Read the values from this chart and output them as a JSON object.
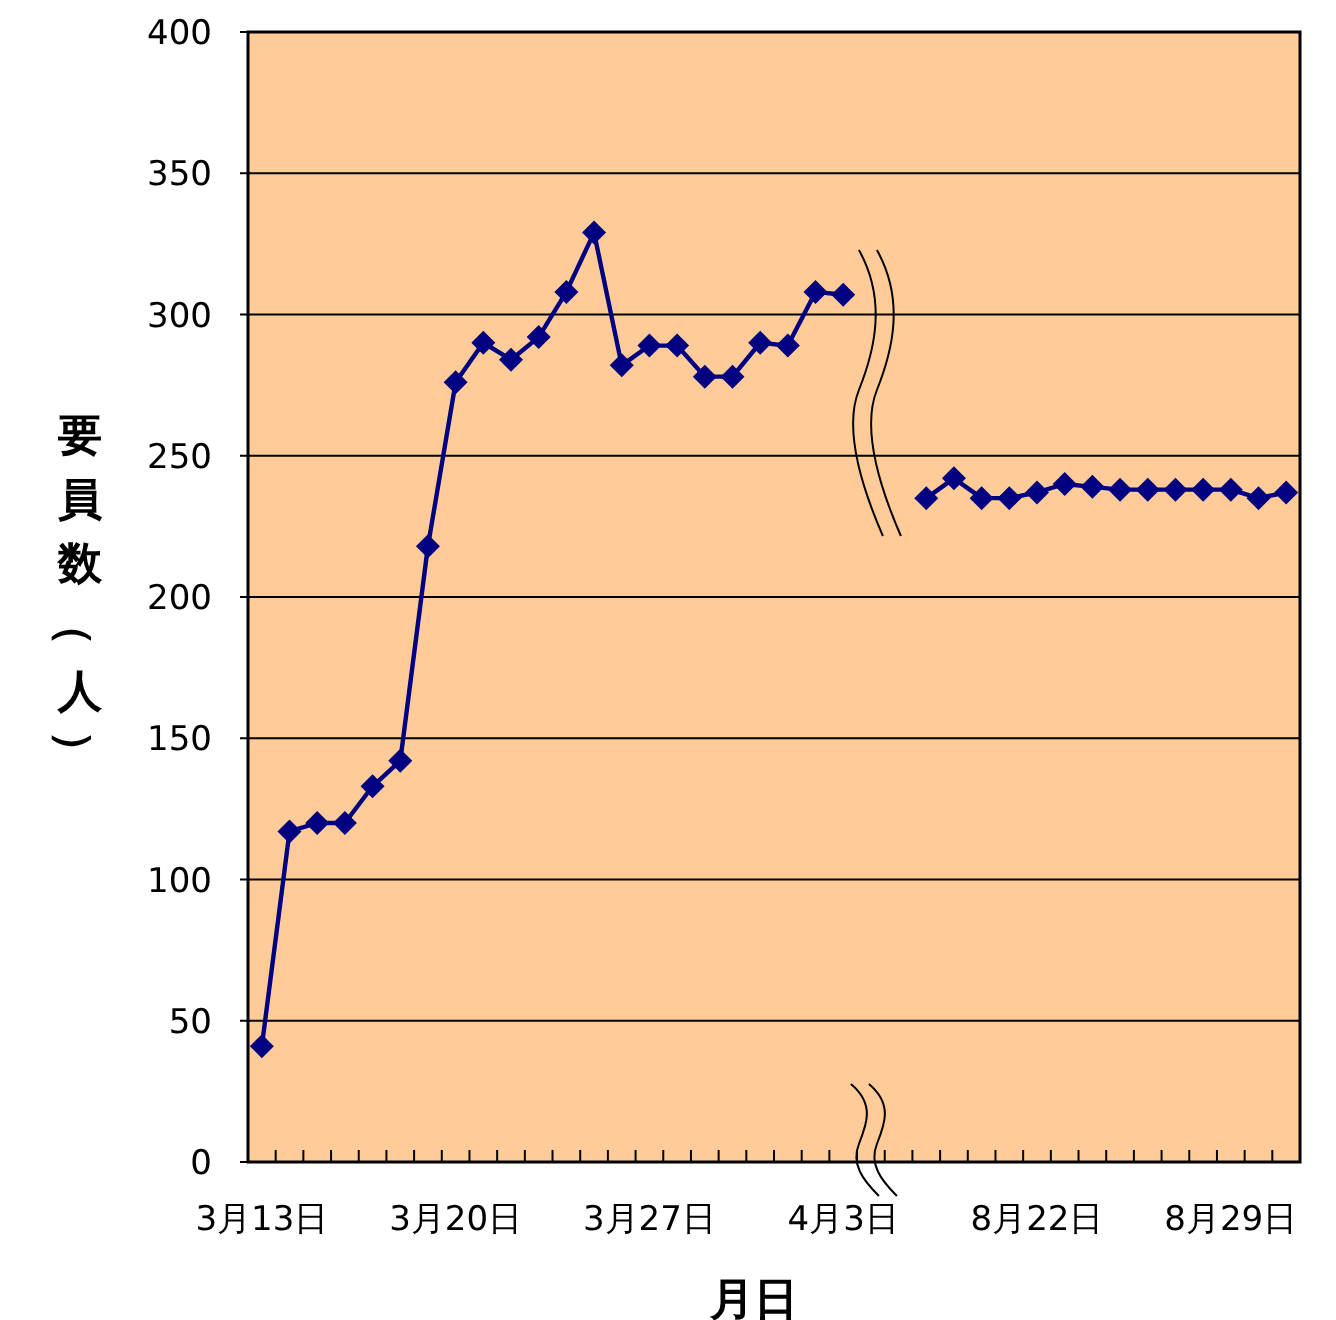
{
  "chart_data": {
    "type": "line",
    "xlabel": "月日",
    "ylabel": "要員数（人）",
    "categories": [
      "3月13日",
      null,
      null,
      null,
      null,
      null,
      null,
      "3月20日",
      null,
      null,
      null,
      null,
      null,
      null,
      "3月27日",
      null,
      null,
      null,
      null,
      null,
      null,
      "4月3日",
      null,
      null,
      null,
      null,
      null,
      null,
      "8月22日",
      null,
      null,
      null,
      null,
      null,
      null,
      "8月29日",
      null,
      null
    ],
    "series": [
      {
        "color": "#000080",
        "values": [
          41,
          117,
          120,
          120,
          133,
          142,
          218,
          276,
          290,
          284,
          292,
          308,
          329,
          282,
          289,
          289,
          278,
          278,
          290,
          289,
          308,
          307,
          null,
          null,
          235,
          242,
          235,
          235,
          237,
          240,
          239,
          238,
          238,
          238,
          238,
          238,
          235,
          237
        ]
      }
    ],
    "ylim": [
      0,
      400
    ],
    "yticks": [
      0,
      50,
      100,
      150,
      200,
      250,
      300,
      350,
      400
    ],
    "grid": "y",
    "marker": "diamond",
    "line_style": "solid"
  }
}
